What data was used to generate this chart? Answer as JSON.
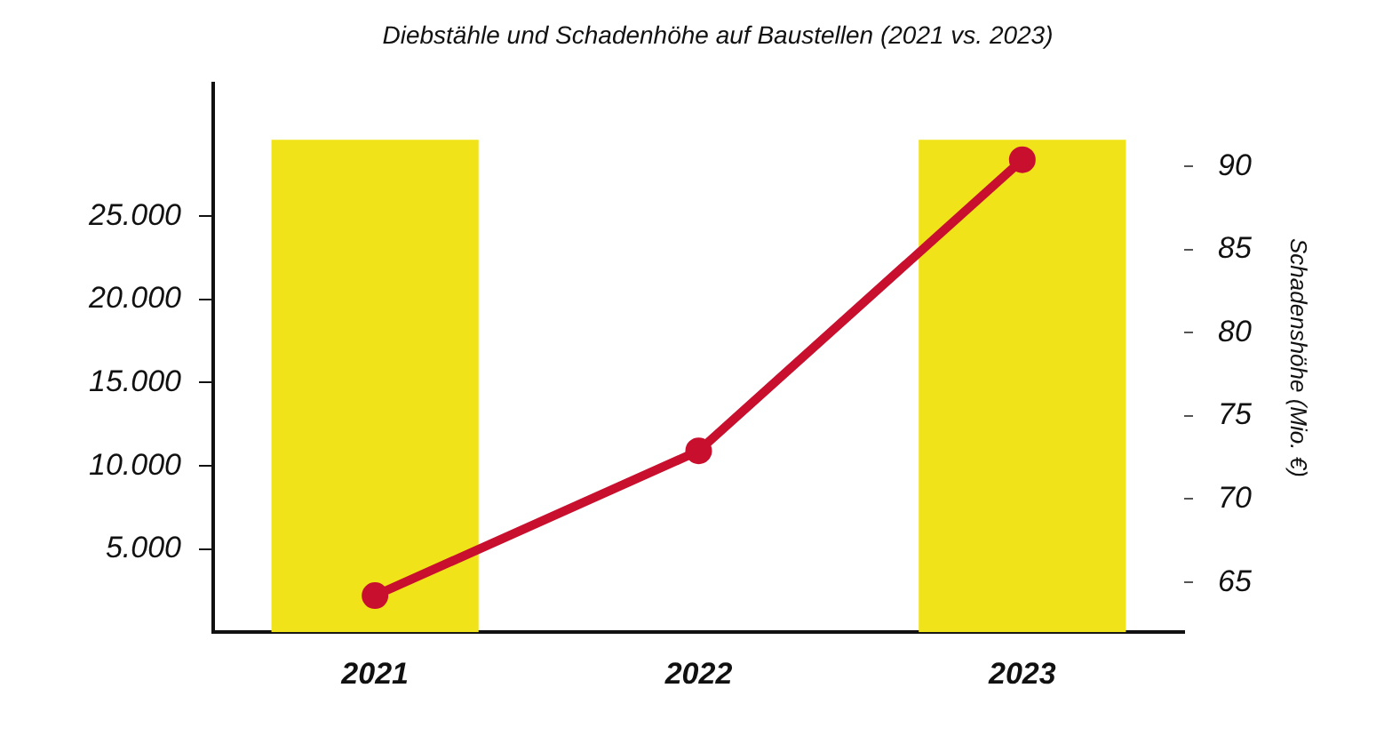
{
  "chart_data": {
    "type": "bar",
    "title": "Diebstähle und Schadenhöhe auf Baustellen (2021 vs. 2023)",
    "y2label": "Schadenshöhe (Mio. €)",
    "categories": [
      "2021",
      "2022",
      "2023"
    ],
    "series": [
      {
        "color": "#f0e31a",
        "values": [
          29600,
          null,
          29600
        ]
      },
      {
        "type": "line",
        "axis": "y2",
        "color": "#c8102e",
        "values": [
          64.2,
          72.9,
          90.4
        ]
      }
    ],
    "ylim": [
      0,
      33000
    ],
    "yticks": [
      {
        "value": 5000,
        "label": "5.000"
      },
      {
        "value": 10000,
        "label": "10.000"
      },
      {
        "value": 15000,
        "label": "15.000"
      },
      {
        "value": 20000,
        "label": "20.000"
      },
      {
        "value": 25000,
        "label": "25.000"
      }
    ],
    "y2lim": [
      62,
      95
    ],
    "y2ticks": [
      65,
      70,
      75,
      80,
      85,
      90
    ],
    "grid": false,
    "legend": false,
    "marker": "circle",
    "line_style": "solid"
  }
}
